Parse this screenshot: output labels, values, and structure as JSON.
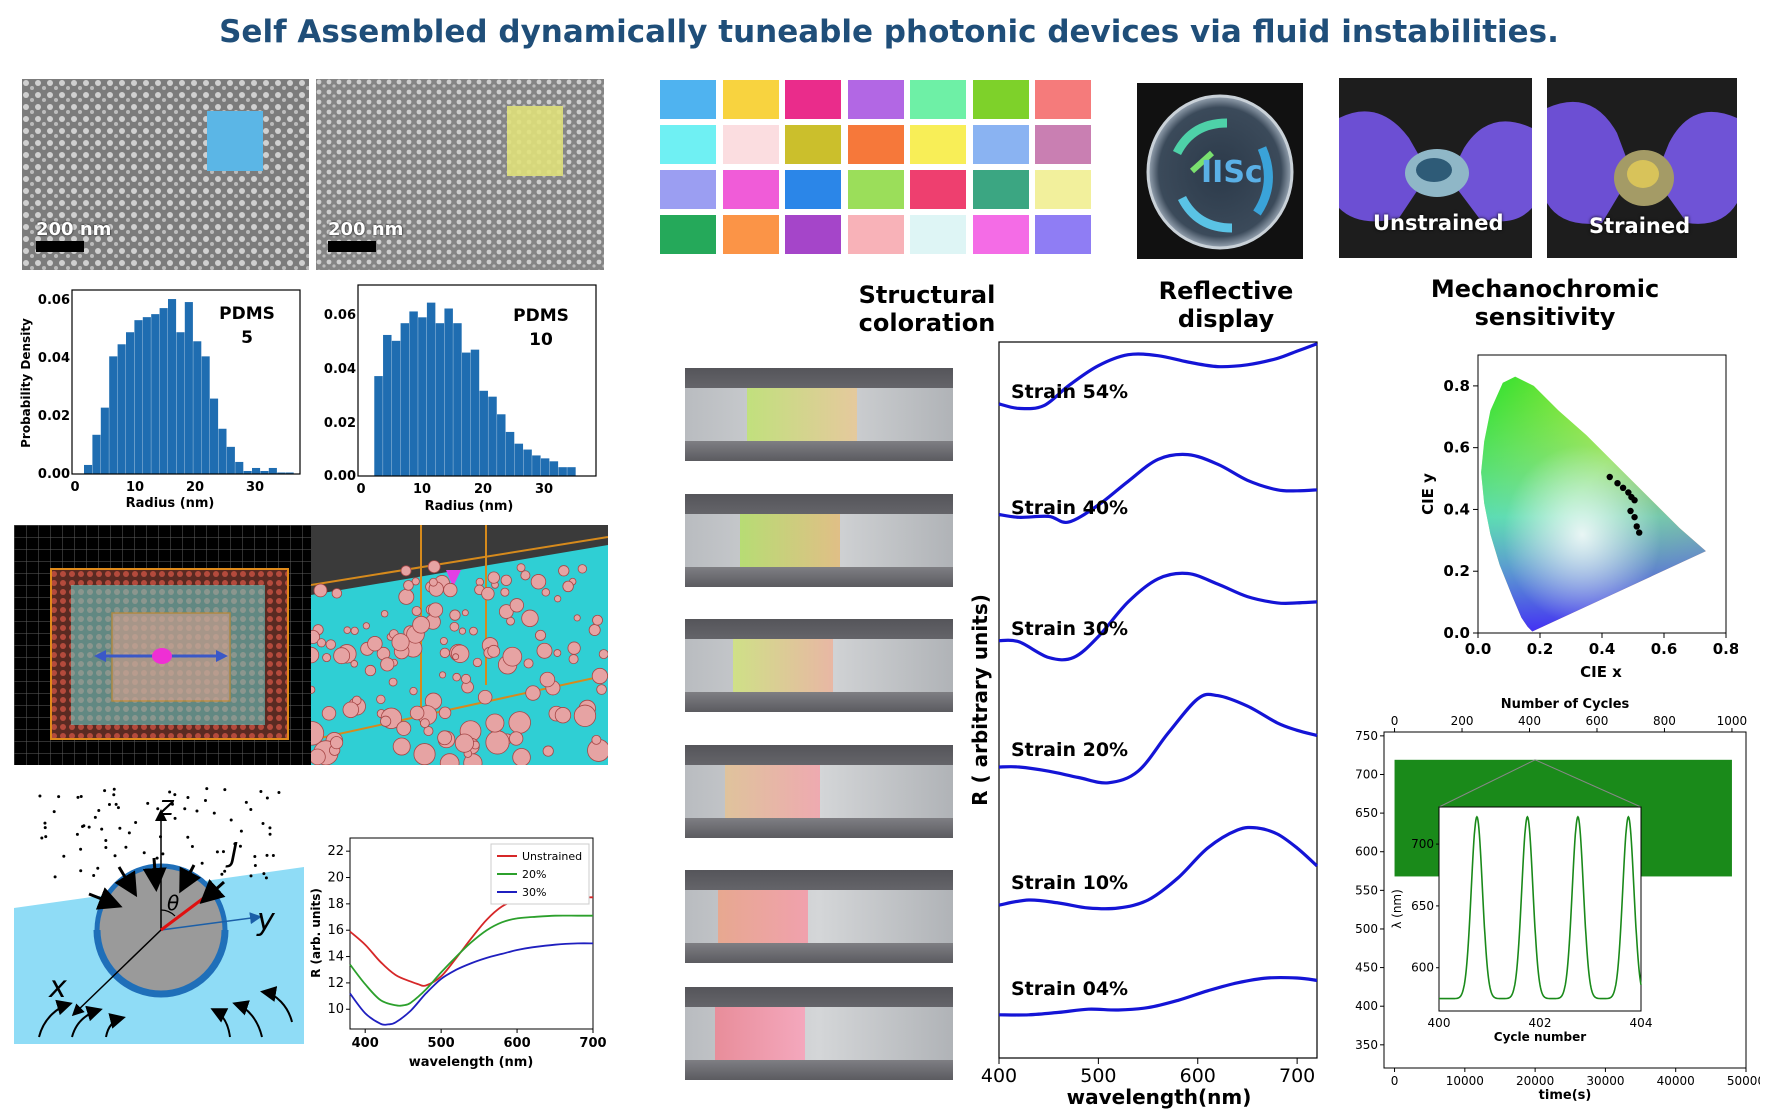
{
  "title": "Self Assembled dynamically tuneable photonic devices via fluid instabilities.",
  "sem_images": [
    {
      "scale_label": "200 nm",
      "overlay_color": "#5bb6e6"
    },
    {
      "scale_label": "200 nm",
      "overlay_color": "#dfe07a"
    }
  ],
  "histograms": [
    {
      "label_line1": "PDMS",
      "label_line2": "5",
      "ylabel": "Probability Density",
      "xlabel": "Radius (nm)",
      "yticks": [
        "0.00",
        "0.02",
        "0.04",
        "0.06"
      ],
      "xticks": [
        "0",
        "10",
        "20",
        "30"
      ]
    },
    {
      "label_line1": "PDMS",
      "label_line2": "10",
      "ylabel": "",
      "xlabel": "Radius (nm)",
      "yticks": [
        "0.00",
        "0.02",
        "0.04",
        "0.06"
      ],
      "xticks": [
        "0",
        "10",
        "20",
        "30"
      ]
    }
  ],
  "chart_data": [
    {
      "type": "bar",
      "label": "PDMS 5",
      "xlabel": "Radius (nm)",
      "ylabel": "Probability Density",
      "xlim": [
        0,
        38
      ],
      "ylim": [
        0,
        0.061
      ],
      "bin_width": 1.4,
      "bin_starts": [
        2,
        3.4,
        4.8,
        6.2,
        7.6,
        9,
        10.4,
        11.8,
        13.2,
        14.6,
        16,
        17.4,
        18.8,
        20.2,
        21.6,
        23,
        24.4,
        25.8,
        27.2,
        28.6,
        30,
        31.4,
        32.8,
        34.2,
        35.6
      ],
      "values": [
        0.003,
        0.013,
        0.022,
        0.039,
        0.043,
        0.047,
        0.051,
        0.052,
        0.053,
        0.055,
        0.058,
        0.047,
        0.057,
        0.044,
        0.039,
        0.025,
        0.015,
        0.009,
        0.004,
        0.001,
        0.002,
        0.001,
        0.002,
        0.0005,
        0.0005
      ]
    },
    {
      "type": "bar",
      "label": "PDMS 10",
      "xlabel": "Radius (nm)",
      "ylabel": "",
      "xlim": [
        0,
        38
      ],
      "ylim": [
        0,
        0.065
      ],
      "bin_width": 1.4,
      "bin_starts": [
        2.6,
        4,
        5.4,
        6.8,
        8.2,
        9.6,
        11,
        12.4,
        13.8,
        15.2,
        16.6,
        18,
        19.4,
        20.8,
        22.2,
        23.6,
        25,
        26.4,
        27.8,
        29.2,
        30.6,
        32,
        33.4
      ],
      "values": [
        0.034,
        0.048,
        0.046,
        0.052,
        0.056,
        0.054,
        0.059,
        0.052,
        0.057,
        0.052,
        0.042,
        0.043,
        0.029,
        0.027,
        0.021,
        0.015,
        0.011,
        0.009,
        0.007,
        0.006,
        0.005,
        0.003,
        0.003
      ]
    },
    {
      "type": "line",
      "xlabel": "wavelength (nm)",
      "ylabel": "R (arb. units)",
      "xlim": [
        380,
        700
      ],
      "ylim": [
        8.5,
        23
      ],
      "xticks": [
        "400",
        "500",
        "600",
        "700"
      ],
      "yticks": [
        "10",
        "12",
        "14",
        "16",
        "18",
        "20",
        "22"
      ],
      "legend_position": "top-right",
      "series": [
        {
          "name": "Unstrained",
          "color": "#d62728",
          "x": [
            380,
            400,
            420,
            440,
            460,
            470,
            480,
            500,
            520,
            540,
            560,
            580,
            600,
            620,
            650,
            680,
            700
          ],
          "y": [
            15.9,
            14.9,
            13.6,
            12.6,
            12.1,
            11.9,
            11.8,
            12.5,
            13.9,
            15.4,
            16.8,
            17.8,
            18.3,
            18.5,
            18.5,
            18.5,
            18.5
          ]
        },
        {
          "name": "20%",
          "color": "#2ca02c",
          "x": [
            380,
            400,
            420,
            440,
            450,
            460,
            480,
            500,
            520,
            540,
            560,
            580,
            600,
            620,
            650,
            680,
            700
          ],
          "y": [
            13.4,
            11.9,
            10.7,
            10.3,
            10.3,
            10.5,
            11.5,
            12.8,
            14.0,
            15.1,
            16.0,
            16.6,
            16.9,
            17.0,
            17.1,
            17.1,
            17.1
          ]
        },
        {
          "name": "30%",
          "color": "#1f1fbf",
          "x": [
            380,
            400,
            420,
            430,
            440,
            460,
            480,
            500,
            520,
            540,
            560,
            580,
            600,
            620,
            650,
            680,
            700
          ],
          "y": [
            11.2,
            9.7,
            8.9,
            8.85,
            9.0,
            9.9,
            11.2,
            12.3,
            13.0,
            13.5,
            13.9,
            14.2,
            14.5,
            14.7,
            14.9,
            15.0,
            15.0
          ]
        }
      ]
    },
    {
      "type": "line",
      "xlabel": "wavelength(nm)",
      "ylabel": "R ( arbitrary units)",
      "xlim": [
        400,
        720
      ],
      "xticks": [
        "400",
        "500",
        "600",
        "700"
      ],
      "series": [
        {
          "name": "Strain 54%",
          "x": [
            400,
            420,
            445,
            470,
            500,
            530,
            560,
            590,
            620,
            650,
            680,
            700,
            720
          ],
          "y": [
            0.32,
            0.27,
            0.3,
            0.52,
            0.74,
            0.86,
            0.85,
            0.78,
            0.73,
            0.75,
            0.82,
            0.9,
            0.98
          ]
        },
        {
          "name": "Strain 40%",
          "x": [
            400,
            420,
            450,
            470,
            500,
            530,
            560,
            590,
            620,
            650,
            680,
            700,
            720
          ],
          "y": [
            0.3,
            0.27,
            0.28,
            0.22,
            0.4,
            0.65,
            0.88,
            0.93,
            0.83,
            0.66,
            0.56,
            0.55,
            0.56
          ]
        },
        {
          "name": "Strain 30%",
          "x": [
            400,
            420,
            450,
            475,
            500,
            530,
            560,
            590,
            620,
            650,
            680,
            700,
            720
          ],
          "y": [
            0.26,
            0.25,
            0.1,
            0.1,
            0.3,
            0.63,
            0.85,
            0.9,
            0.8,
            0.68,
            0.62,
            0.62,
            0.63
          ]
        },
        {
          "name": "Strain 20%",
          "x": [
            400,
            420,
            450,
            480,
            510,
            540,
            570,
            600,
            620,
            650,
            680,
            700,
            720
          ],
          "y": [
            0.2,
            0.2,
            0.16,
            0.1,
            0.05,
            0.16,
            0.52,
            0.85,
            0.88,
            0.78,
            0.62,
            0.55,
            0.5
          ]
        },
        {
          "name": "Strain 10%",
          "x": [
            400,
            430,
            460,
            490,
            520,
            550,
            580,
            610,
            640,
            660,
            680,
            700,
            720
          ],
          "y": [
            0.03,
            0.08,
            0.05,
            0.0,
            0.0,
            0.08,
            0.3,
            0.6,
            0.78,
            0.8,
            0.74,
            0.6,
            0.42
          ]
        },
        {
          "name": "Strain 04%",
          "x": [
            400,
            430,
            460,
            490,
            520,
            550,
            580,
            610,
            640,
            670,
            700,
            720
          ],
          "y": [
            0.04,
            0.04,
            0.07,
            0.11,
            0.1,
            0.13,
            0.22,
            0.34,
            0.44,
            0.5,
            0.5,
            0.47
          ]
        }
      ]
    },
    {
      "type": "scatter",
      "xlabel": "CIE x",
      "ylabel": "CIE y",
      "xlim": [
        0.0,
        0.8
      ],
      "ylim": [
        0.0,
        0.9
      ],
      "xticks": [
        "0.0",
        "0.2",
        "0.4",
        "0.6",
        "0.8"
      ],
      "yticks": [
        "0.0",
        "0.2",
        "0.4",
        "0.6",
        "0.8"
      ],
      "x": [
        0.425,
        0.45,
        0.468,
        0.485,
        0.495,
        0.505,
        0.492,
        0.505,
        0.512,
        0.52
      ],
      "y": [
        0.505,
        0.485,
        0.47,
        0.455,
        0.44,
        0.43,
        0.395,
        0.375,
        0.345,
        0.325
      ]
    },
    {
      "type": "line",
      "xlabel": "time(s)",
      "ylabel": "",
      "top_xlabel": "Number of Cycles",
      "xlim": [
        -1500,
        50000
      ],
      "ylim": [
        320,
        755
      ],
      "xticks": [
        "0",
        "10000",
        "20000",
        "30000",
        "40000",
        "50000"
      ],
      "top_xticks": [
        "0",
        "200",
        "400",
        "600",
        "800",
        "1000"
      ],
      "yticks": [
        "350",
        "400",
        "450",
        "500",
        "550",
        "600",
        "650",
        "700",
        "750"
      ],
      "band_range_y": [
        568,
        719
      ],
      "band_range_x": [
        0,
        48000
      ],
      "color": "#1a8a1a",
      "inset": {
        "xlabel": "Cycle number",
        "ylabel": "λ (nm)",
        "xlim": [
          400,
          404
        ],
        "ylim": [
          565,
          730
        ],
        "xticks": [
          "400",
          "402",
          "404"
        ],
        "yticks": [
          "600",
          "650",
          "700"
        ],
        "peaks_x": [
          400.75,
          401.75,
          402.75,
          403.75
        ],
        "min_y": 575,
        "max_y": 722
      }
    }
  ],
  "swatch_colors": [
    [
      "#4fb3f0",
      "#f8d33f",
      "#ea2c8b",
      "#b267e4",
      "#6ef0a6",
      "#7ed12a",
      "#f57b7b"
    ],
    [
      "#6ff0f3",
      "#fbdde0",
      "#cbbf2c",
      "#f6783a",
      "#f8ee57",
      "#8ab3f2",
      "#c97fb2"
    ],
    [
      "#9b9ef2",
      "#f05cd8",
      "#2b86e8",
      "#9bde5a",
      "#ee3f6f",
      "#3ba682",
      "#f2f09c"
    ],
    [
      "#25a95a",
      "#fb9447",
      "#a545c9",
      "#f8b2b8",
      "#def5f5",
      "#f46ce6",
      "#8f7df4"
    ]
  ],
  "section_labels": {
    "structural": "Structural coloration",
    "reflective": "Reflective display",
    "mechano": "Mechanochromic sensitivity"
  },
  "photos": {
    "iisc_text": "IISc",
    "unstrained": "Unstrained",
    "strained": "Strained"
  },
  "strip_photos": [
    {
      "color_from": "#c1e07d",
      "color_to": "#e5c99d"
    },
    {
      "color_from": "#b7dc74",
      "color_to": "#e0bf86"
    },
    {
      "color_from": "#cfe087",
      "color_to": "#e8b7a4"
    },
    {
      "color_from": "#dfc39c",
      "color_to": "#eeaab0"
    },
    {
      "color_from": "#e7a890",
      "color_to": "#f0a1ad"
    },
    {
      "color_from": "#e88d9a",
      "color_to": "#f4a8bd"
    }
  ],
  "schematic": {
    "z": "z",
    "J": "J",
    "theta": "θ",
    "y": "y",
    "x": "x"
  }
}
